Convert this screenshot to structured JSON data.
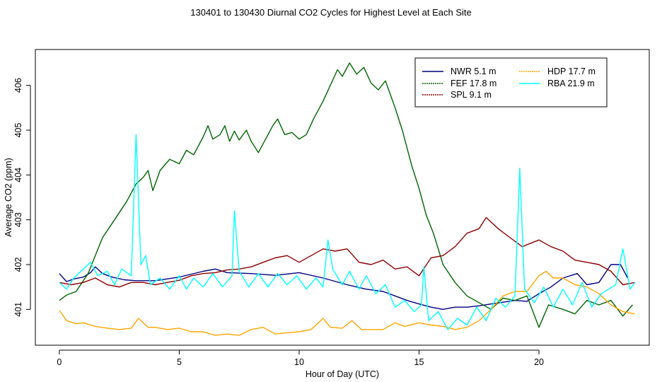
{
  "chart_data": {
    "type": "line",
    "title": "130401  to  130430 Diurnal CO2 Cycles for Highest Level at Each Site",
    "xlabel": "Hour of Day (UTC)",
    "ylabel": "Average CO2 (ppm)",
    "xlim": [
      -1,
      24.6
    ],
    "ylim": [
      400.2,
      406.8
    ],
    "xticks": [
      0,
      5,
      10,
      15,
      20
    ],
    "yticks": [
      401,
      402,
      403,
      404,
      405,
      406
    ],
    "grid": false,
    "legend_position": "top-right",
    "legend": [
      {
        "label": "NWR  5.1 m",
        "series": 0
      },
      {
        "label": "FEF  17.8 m",
        "series": 1
      },
      {
        "label": "SPL  9.1 m",
        "series": 2
      },
      {
        "label": "HDP  17.7 m",
        "series": 3
      },
      {
        "label": "RBA  21.9 m",
        "series": 4
      }
    ],
    "series": [
      {
        "name": "NWR  5.1 m",
        "color": "#00007f",
        "points": [
          [
            0,
            401.8
          ],
          [
            0.3,
            401.62
          ],
          [
            0.6,
            401.68
          ],
          [
            1,
            401.72
          ],
          [
            1.3,
            401.82
          ],
          [
            1.5,
            401.95
          ],
          [
            1.8,
            401.8
          ],
          [
            2.2,
            401.72
          ],
          [
            2.7,
            401.66
          ],
          [
            3.2,
            401.64
          ],
          [
            4,
            401.64
          ],
          [
            5,
            401.72
          ],
          [
            6,
            401.85
          ],
          [
            6.5,
            401.9
          ],
          [
            7,
            401.82
          ],
          [
            8,
            401.8
          ],
          [
            9,
            401.76
          ],
          [
            10,
            401.82
          ],
          [
            11,
            401.7
          ],
          [
            12,
            401.55
          ],
          [
            12.8,
            401.45
          ],
          [
            13.5,
            401.4
          ],
          [
            14,
            401.3
          ],
          [
            14.5,
            401.2
          ],
          [
            15,
            401.12
          ],
          [
            15.5,
            401.05
          ],
          [
            16,
            401.0
          ],
          [
            16.5,
            401.05
          ],
          [
            17,
            401.05
          ],
          [
            17.5,
            401.08
          ],
          [
            18,
            401.12
          ],
          [
            19,
            401.2
          ],
          [
            19.5,
            401.18
          ],
          [
            20,
            401.35
          ],
          [
            20.5,
            401.5
          ],
          [
            21,
            401.7
          ],
          [
            21.6,
            401.8
          ],
          [
            22,
            401.55
          ],
          [
            22.5,
            401.6
          ],
          [
            23,
            402.0
          ],
          [
            23.4,
            402.0
          ],
          [
            23.7,
            401.7
          ]
        ]
      },
      {
        "name": "FEF  17.8 m",
        "color": "#006400",
        "points": [
          [
            0,
            401.2
          ],
          [
            0.3,
            401.32
          ],
          [
            0.7,
            401.4
          ],
          [
            1.2,
            401.8
          ],
          [
            1.8,
            402.6
          ],
          [
            2.3,
            403.0
          ],
          [
            2.8,
            403.4
          ],
          [
            3.2,
            403.8
          ],
          [
            3.5,
            403.95
          ],
          [
            3.7,
            404.1
          ],
          [
            3.9,
            403.65
          ],
          [
            4.2,
            404.1
          ],
          [
            4.6,
            404.35
          ],
          [
            5,
            404.25
          ],
          [
            5.3,
            404.55
          ],
          [
            5.6,
            404.45
          ],
          [
            6,
            404.85
          ],
          [
            6.2,
            405.1
          ],
          [
            6.4,
            404.8
          ],
          [
            6.7,
            404.9
          ],
          [
            6.9,
            405.1
          ],
          [
            7.1,
            404.75
          ],
          [
            7.3,
            404.98
          ],
          [
            7.5,
            404.78
          ],
          [
            7.8,
            405.0
          ],
          [
            8,
            404.75
          ],
          [
            8.3,
            404.5
          ],
          [
            8.6,
            404.8
          ],
          [
            8.9,
            405.1
          ],
          [
            9.1,
            405.25
          ],
          [
            9.4,
            404.9
          ],
          [
            9.7,
            404.95
          ],
          [
            10,
            404.8
          ],
          [
            10.3,
            404.9
          ],
          [
            10.6,
            405.25
          ],
          [
            11,
            405.65
          ],
          [
            11.3,
            406.0
          ],
          [
            11.6,
            406.35
          ],
          [
            11.8,
            406.2
          ],
          [
            12.1,
            406.5
          ],
          [
            12.4,
            406.25
          ],
          [
            12.7,
            406.4
          ],
          [
            13.0,
            406.05
          ],
          [
            13.3,
            405.9
          ],
          [
            13.6,
            406.1
          ],
          [
            14,
            405.5
          ],
          [
            14.3,
            405.0
          ],
          [
            14.7,
            404.2
          ],
          [
            15,
            403.7
          ],
          [
            15.3,
            403.1
          ],
          [
            15.6,
            402.7
          ],
          [
            16,
            402.0
          ],
          [
            16.5,
            401.6
          ],
          [
            17,
            401.3
          ],
          [
            17.5,
            401.15
          ],
          [
            18,
            401.0
          ],
          [
            18.5,
            401.25
          ],
          [
            19,
            401.2
          ],
          [
            19.5,
            401.3
          ],
          [
            20,
            400.6
          ],
          [
            20.4,
            401.1
          ],
          [
            21,
            401.0
          ],
          [
            21.5,
            400.9
          ],
          [
            22,
            401.2
          ],
          [
            22.5,
            401.1
          ],
          [
            23,
            401.2
          ],
          [
            23.5,
            400.85
          ],
          [
            23.9,
            401.1
          ]
        ]
      },
      {
        "name": "SPL  9.1 m",
        "color": "#8b0000",
        "points": [
          [
            0,
            401.6
          ],
          [
            0.5,
            401.55
          ],
          [
            1,
            401.6
          ],
          [
            1.5,
            401.7
          ],
          [
            2,
            401.55
          ],
          [
            2.5,
            401.5
          ],
          [
            3,
            401.6
          ],
          [
            3.5,
            401.6
          ],
          [
            4,
            401.55
          ],
          [
            4.5,
            401.6
          ],
          [
            5,
            401.65
          ],
          [
            5.5,
            401.75
          ],
          [
            6,
            401.8
          ],
          [
            6.5,
            401.82
          ],
          [
            7,
            401.88
          ],
          [
            7.5,
            401.9
          ],
          [
            8,
            401.95
          ],
          [
            8.5,
            402.05
          ],
          [
            9,
            402.15
          ],
          [
            9.5,
            402.2
          ],
          [
            10,
            402.05
          ],
          [
            10.5,
            402.2
          ],
          [
            11,
            402.35
          ],
          [
            11.5,
            402.3
          ],
          [
            12,
            402.35
          ],
          [
            12.5,
            402.05
          ],
          [
            13,
            402.0
          ],
          [
            13.5,
            402.1
          ],
          [
            14,
            401.9
          ],
          [
            14.5,
            401.95
          ],
          [
            15,
            401.75
          ],
          [
            15.5,
            402.15
          ],
          [
            16,
            402.2
          ],
          [
            16.5,
            402.4
          ],
          [
            17,
            402.7
          ],
          [
            17.5,
            402.8
          ],
          [
            17.8,
            403.05
          ],
          [
            18.3,
            402.8
          ],
          [
            18.8,
            402.6
          ],
          [
            19.3,
            402.4
          ],
          [
            20,
            402.55
          ],
          [
            20.5,
            402.4
          ],
          [
            21,
            402.3
          ],
          [
            21.5,
            402.1
          ],
          [
            22,
            402.05
          ],
          [
            22.5,
            402.0
          ],
          [
            23,
            401.85
          ],
          [
            23.5,
            401.55
          ],
          [
            24,
            401.6
          ]
        ]
      },
      {
        "name": "HDP  17.7 m",
        "color": "#ffa500",
        "points": [
          [
            0,
            400.98
          ],
          [
            0.3,
            400.75
          ],
          [
            0.7,
            400.68
          ],
          [
            1,
            400.7
          ],
          [
            1.5,
            400.62
          ],
          [
            2,
            400.58
          ],
          [
            2.5,
            400.55
          ],
          [
            3,
            400.58
          ],
          [
            3.3,
            400.8
          ],
          [
            3.7,
            400.6
          ],
          [
            4,
            400.6
          ],
          [
            4.5,
            400.55
          ],
          [
            5,
            400.58
          ],
          [
            5.5,
            400.5
          ],
          [
            6,
            400.5
          ],
          [
            6.5,
            400.42
          ],
          [
            7,
            400.45
          ],
          [
            7.5,
            400.42
          ],
          [
            8,
            400.55
          ],
          [
            8.5,
            400.6
          ],
          [
            9,
            400.45
          ],
          [
            9.5,
            400.48
          ],
          [
            10,
            400.5
          ],
          [
            10.5,
            400.55
          ],
          [
            11,
            400.8
          ],
          [
            11.3,
            400.6
          ],
          [
            11.8,
            400.58
          ],
          [
            12.2,
            400.75
          ],
          [
            12.6,
            400.55
          ],
          [
            13,
            400.55
          ],
          [
            13.5,
            400.55
          ],
          [
            14,
            400.7
          ],
          [
            14.4,
            400.62
          ],
          [
            15,
            400.7
          ],
          [
            15.5,
            400.65
          ],
          [
            16,
            400.62
          ],
          [
            16.5,
            400.55
          ],
          [
            17,
            400.6
          ],
          [
            17.5,
            400.75
          ],
          [
            18,
            401.0
          ],
          [
            18.5,
            401.3
          ],
          [
            19,
            401.4
          ],
          [
            19.5,
            401.4
          ],
          [
            20,
            401.75
          ],
          [
            20.3,
            401.85
          ],
          [
            20.6,
            401.7
          ],
          [
            21,
            401.7
          ],
          [
            21.5,
            401.55
          ],
          [
            22,
            401.5
          ],
          [
            22.5,
            401.35
          ],
          [
            23,
            401.1
          ],
          [
            23.5,
            400.95
          ],
          [
            24,
            400.9
          ]
        ]
      },
      {
        "name": "RBA  21.9 m",
        "color": "#00ffff",
        "points": [
          [
            0,
            401.6
          ],
          [
            0.3,
            401.45
          ],
          [
            0.6,
            401.7
          ],
          [
            1,
            401.9
          ],
          [
            1.3,
            402.05
          ],
          [
            1.6,
            401.75
          ],
          [
            2,
            401.85
          ],
          [
            2.3,
            401.55
          ],
          [
            2.6,
            401.9
          ],
          [
            3,
            401.75
          ],
          [
            3.2,
            404.9
          ],
          [
            3.4,
            402.0
          ],
          [
            3.6,
            402.2
          ],
          [
            3.8,
            401.55
          ],
          [
            4.2,
            401.7
          ],
          [
            4.6,
            401.45
          ],
          [
            5,
            401.75
          ],
          [
            5.3,
            401.45
          ],
          [
            5.6,
            401.7
          ],
          [
            6,
            401.5
          ],
          [
            6.4,
            401.8
          ],
          [
            6.8,
            401.5
          ],
          [
            7.2,
            401.75
          ],
          [
            7.3,
            403.2
          ],
          [
            7.5,
            401.85
          ],
          [
            7.9,
            401.5
          ],
          [
            8.3,
            401.8
          ],
          [
            8.7,
            401.5
          ],
          [
            9.1,
            401.8
          ],
          [
            9.5,
            401.55
          ],
          [
            9.9,
            401.75
          ],
          [
            10.3,
            401.45
          ],
          [
            10.7,
            401.7
          ],
          [
            11,
            401.5
          ],
          [
            11.2,
            402.55
          ],
          [
            11.4,
            401.9
          ],
          [
            11.8,
            401.55
          ],
          [
            12.1,
            401.85
          ],
          [
            12.5,
            401.45
          ],
          [
            12.8,
            401.75
          ],
          [
            13.2,
            401.35
          ],
          [
            13.6,
            401.55
          ],
          [
            14,
            401.05
          ],
          [
            14.4,
            401.2
          ],
          [
            14.8,
            400.95
          ],
          [
            15.1,
            401.1
          ],
          [
            15.2,
            401.95
          ],
          [
            15.4,
            400.75
          ],
          [
            15.8,
            400.95
          ],
          [
            16.2,
            400.55
          ],
          [
            16.6,
            400.8
          ],
          [
            17,
            400.65
          ],
          [
            17.4,
            401.05
          ],
          [
            17.8,
            400.75
          ],
          [
            18.2,
            401.25
          ],
          [
            18.6,
            401.05
          ],
          [
            19,
            401.3
          ],
          [
            19.2,
            404.15
          ],
          [
            19.4,
            401.45
          ],
          [
            19.8,
            401.15
          ],
          [
            20.2,
            401.5
          ],
          [
            20.6,
            401.05
          ],
          [
            21,
            401.45
          ],
          [
            21.4,
            401.1
          ],
          [
            21.8,
            401.6
          ],
          [
            22.2,
            401.05
          ],
          [
            22.6,
            401.35
          ],
          [
            22.9,
            401.45
          ],
          [
            23.2,
            401.55
          ],
          [
            23.5,
            402.35
          ],
          [
            23.8,
            401.45
          ],
          [
            24,
            401.6
          ]
        ]
      }
    ]
  }
}
